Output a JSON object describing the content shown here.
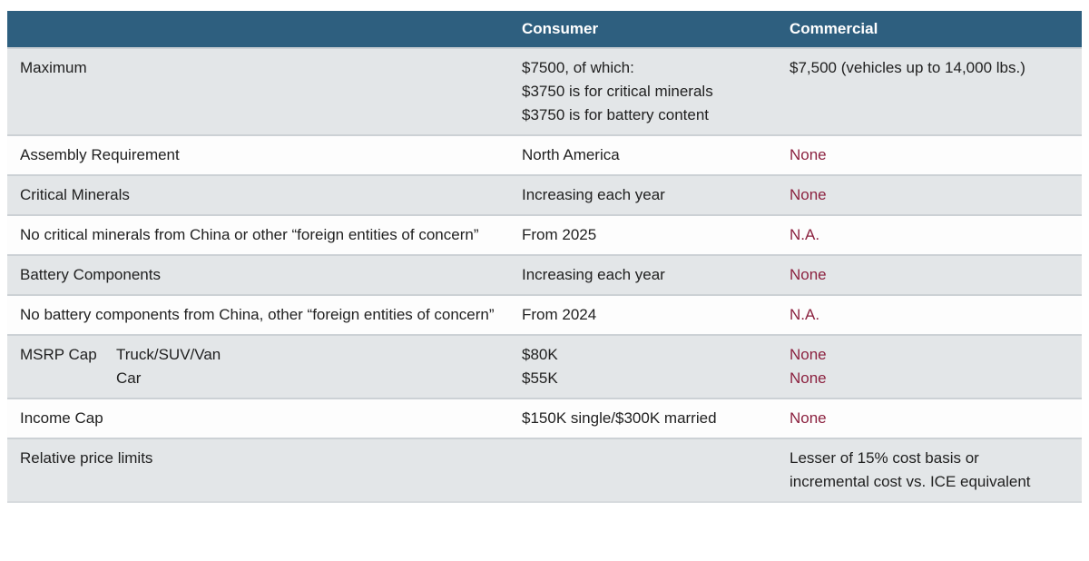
{
  "colors": {
    "header_bg": "#2e5f7f",
    "header_text": "#ffffff",
    "stripe_row_bg": "#e3e6e8",
    "white_row_bg": "#fdfdfd",
    "accent_red": "#8c2240",
    "body_text": "#212121",
    "row_separator": "#ccd1d5"
  },
  "header": {
    "blank": "",
    "consumer": "Consumer",
    "commercial": "Commercial"
  },
  "rows": [
    {
      "label": "Maximum",
      "consumer": [
        "$7500, of which:",
        "$3750 is for critical minerals",
        "$3750 is for battery content"
      ],
      "commercial": [
        "$7,500 (vehicles up to 14,000 lbs.)"
      ]
    },
    {
      "label": "Assembly Requirement",
      "consumer": [
        "North America"
      ],
      "commercial": [
        "None"
      ]
    },
    {
      "label": "Critical Minerals",
      "consumer": [
        "Increasing each year"
      ],
      "commercial": [
        "None"
      ]
    },
    {
      "label": "No critical minerals from China or other “foreign entities of concern”",
      "consumer": [
        "From 2025"
      ],
      "commercial": [
        "N.A."
      ]
    },
    {
      "label": "Battery Components",
      "consumer": [
        "Increasing each year"
      ],
      "commercial": [
        "None"
      ]
    },
    {
      "label": "No battery components from China, other “foreign entities of concern”",
      "consumer": [
        "From 2024"
      ],
      "commercial": [
        "N.A."
      ]
    },
    {
      "label": "MSRP Cap",
      "sublabels": [
        "Truck/SUV/Van",
        "Car"
      ],
      "consumer": [
        "$80K",
        "$55K"
      ],
      "commercial": [
        "None",
        "None"
      ]
    },
    {
      "label": "Income Cap",
      "consumer": [
        "$150K single/$300K married"
      ],
      "commercial": [
        "None"
      ]
    },
    {
      "label": "Relative price limits",
      "consumer": [],
      "commercial": [
        "Lesser of 15% cost basis or",
        "incremental cost vs. ICE equivalent"
      ]
    }
  ]
}
